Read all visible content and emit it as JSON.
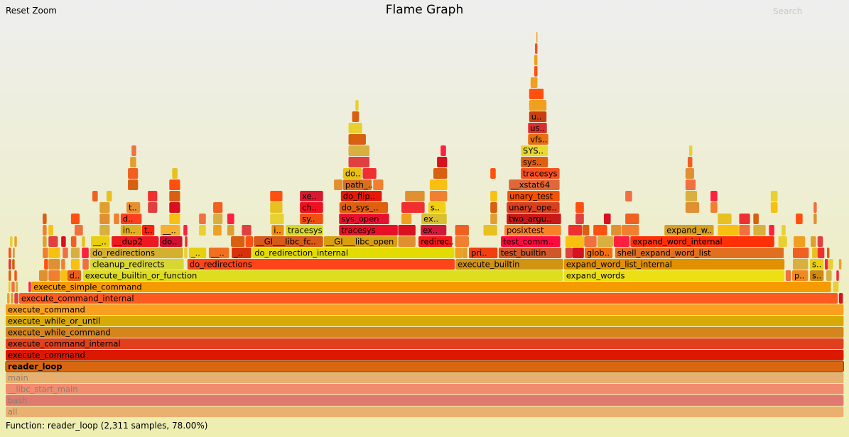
{
  "header": {
    "reset_zoom": "Reset Zoom",
    "title": "Flame Graph",
    "search": "Search"
  },
  "details": "Function: reader_loop (2,311 samples, 78.00%)",
  "chart_data": {
    "type": "flamegraph",
    "title": "Flame Graph",
    "zoomed_frame": "reader_loop",
    "total_samples_in_view": 2311,
    "frames": [
      {
        "name": "all",
        "depth": 0,
        "start": 0,
        "samples": 2311,
        "color": "#ebb070",
        "dimmed": true
      },
      {
        "name": "bash",
        "depth": 1,
        "start": 0,
        "samples": 2311,
        "color": "#e07a70",
        "dimmed": true
      },
      {
        "name": "__libc_start_main",
        "depth": 2,
        "start": 0,
        "samples": 2311,
        "color": "#f08c70",
        "dimmed": true
      },
      {
        "name": "main",
        "depth": 3,
        "start": 0,
        "samples": 2311,
        "color": "#e8b070",
        "dimmed": true
      },
      {
        "name": "reader_loop",
        "depth": 4,
        "start": 0,
        "samples": 2311,
        "color": "#d9670f",
        "selected": true
      },
      {
        "name": "execute_command",
        "depth": 5,
        "start": 0,
        "samples": 2311,
        "color": "#dd1800"
      },
      {
        "name": "execute_command_internal",
        "depth": 6,
        "start": 0,
        "samples": 2311,
        "color": "#e0401e"
      },
      {
        "name": "execute_while_command",
        "depth": 7,
        "start": 0,
        "samples": 2311,
        "color": "#d4861c"
      },
      {
        "name": "execute_while_or_until",
        "depth": 8,
        "start": 0,
        "samples": 2311,
        "color": "#d8aa08"
      },
      {
        "name": "execute_command",
        "depth": 9,
        "start": 0,
        "samples": 2311,
        "color": "#f9a020"
      },
      {
        "name": "execute_command_internal",
        "depth": 10,
        "start": 37,
        "samples": 2258,
        "color": "#fe5a20"
      },
      {
        "name": "execute_simple_command",
        "depth": 11,
        "start": 71,
        "samples": 2205,
        "color": "#f59a00"
      },
      {
        "name": "d..",
        "depth": 12,
        "start": 170,
        "samples": 39,
        "color": "#e86018"
      },
      {
        "name": "execute_builtin_or_function",
        "depth": 12,
        "start": 213,
        "samples": 1324,
        "color": "#dedd20"
      },
      {
        "name": "expand_words",
        "depth": 12,
        "start": 1539,
        "samples": 609,
        "color": "#ece014"
      },
      {
        "name": "p..",
        "depth": 12,
        "start": 2168,
        "samples": 45,
        "color": "#f08a20"
      },
      {
        "name": "s..",
        "depth": 12,
        "start": 2217,
        "samples": 39,
        "color": "#d08a10"
      },
      {
        "name": "cleanup_redirects",
        "depth": 13,
        "start": 233,
        "samples": 259,
        "color": "#d8d632"
      },
      {
        "name": "do_redirections",
        "depth": 13,
        "start": 501,
        "samples": 738,
        "color": "#ff4418"
      },
      {
        "name": "execute_builtin",
        "depth": 13,
        "start": 1240,
        "samples": 298,
        "color": "#d09412"
      },
      {
        "name": "expand_word_list_internal",
        "depth": 13,
        "start": 1539,
        "samples": 609,
        "color": "#e09000"
      },
      {
        "name": "s..",
        "depth": 13,
        "start": 2217,
        "samples": 39,
        "color": "#e8d010"
      },
      {
        "name": "do_redirections",
        "depth": 14,
        "start": 233,
        "samples": 257,
        "color": "#d4b030"
      },
      {
        "name": "_..",
        "depth": 14,
        "start": 505,
        "samples": 49,
        "color": "#e8d010"
      },
      {
        "name": "__..",
        "depth": 14,
        "start": 560,
        "samples": 57,
        "color": "#f07020"
      },
      {
        "name": "_..",
        "depth": 14,
        "start": 623,
        "samples": 55,
        "color": "#d83008"
      },
      {
        "name": "do_redirection_internal",
        "depth": 14,
        "start": 680,
        "samples": 558,
        "color": "#e4dc00"
      },
      {
        "name": "pri..",
        "depth": 14,
        "start": 1277,
        "samples": 80,
        "color": "#f04010"
      },
      {
        "name": "test_builtin",
        "depth": 14,
        "start": 1359,
        "samples": 174,
        "color": "#d05828"
      },
      {
        "name": "glob..",
        "depth": 14,
        "start": 1596,
        "samples": 78,
        "color": "#f07010"
      },
      {
        "name": "shell_expand_word_list",
        "depth": 14,
        "start": 1680,
        "samples": 466,
        "color": "#e07020"
      },
      {
        "name": "__..",
        "depth": 15,
        "start": 235,
        "samples": 53,
        "color": "#e8d010"
      },
      {
        "name": "__dup2",
        "depth": 15,
        "start": 292,
        "samples": 131,
        "color": "#ee1820"
      },
      {
        "name": "do..",
        "depth": 15,
        "start": 425,
        "samples": 63,
        "color": "#d01030"
      },
      {
        "name": "__GI___libc_fc..",
        "depth": 15,
        "start": 684,
        "samples": 192,
        "color": "#d85a18"
      },
      {
        "name": "__GI___libc_open",
        "depth": 15,
        "start": 877,
        "samples": 204,
        "color": "#d8a010"
      },
      {
        "name": "redirec..",
        "depth": 15,
        "start": 1138,
        "samples": 94,
        "color": "#f41818"
      },
      {
        "name": "test_comm..",
        "depth": 15,
        "start": 1365,
        "samples": 165,
        "color": "#ff0a40"
      },
      {
        "name": "expand_word_internal",
        "depth": 15,
        "start": 1722,
        "samples": 398,
        "color": "#ff3008"
      },
      {
        "name": "in..",
        "depth": 16,
        "start": 317,
        "samples": 59,
        "color": "#e0b020"
      },
      {
        "name": "t..",
        "depth": 16,
        "start": 376,
        "samples": 35,
        "color": "#ff2010"
      },
      {
        "name": "__..",
        "depth": 16,
        "start": 427,
        "samples": 55,
        "color": "#f5b030"
      },
      {
        "name": "i..",
        "depth": 16,
        "start": 733,
        "samples": 35,
        "color": "#f09010"
      },
      {
        "name": "tracesys",
        "depth": 16,
        "start": 772,
        "samples": 104,
        "color": "#d8d828"
      },
      {
        "name": "tracesys",
        "depth": 16,
        "start": 919,
        "samples": 163,
        "color": "#e81028"
      },
      {
        "name": "ex..",
        "depth": 16,
        "start": 1144,
        "samples": 72,
        "color": "#d01838"
      },
      {
        "name": "posixtest",
        "depth": 16,
        "start": 1375,
        "samples": 157,
        "color": "#fa8028"
      },
      {
        "name": "expand_w..",
        "depth": 16,
        "start": 1816,
        "samples": 137,
        "color": "#d8a020"
      },
      {
        "name": "d..",
        "depth": 17,
        "start": 317,
        "samples": 59,
        "color": "#ff4020"
      },
      {
        "name": "sy..",
        "depth": 17,
        "start": 811,
        "samples": 65,
        "color": "#f05010"
      },
      {
        "name": "sys_open",
        "depth": 17,
        "start": 919,
        "samples": 139,
        "color": "#e81030"
      },
      {
        "name": "ex..",
        "depth": 17,
        "start": 1146,
        "samples": 71,
        "color": "#d8c030"
      },
      {
        "name": "two_argu..",
        "depth": 17,
        "start": 1381,
        "samples": 151,
        "color": "#c81818"
      },
      {
        "name": "t..",
        "depth": 18,
        "start": 333,
        "samples": 39,
        "color": "#e89030"
      },
      {
        "name": "ch..",
        "depth": 18,
        "start": 811,
        "samples": 65,
        "color": "#f01020"
      },
      {
        "name": "do_sys_..",
        "depth": 18,
        "start": 920,
        "samples": 135,
        "color": "#e06010"
      },
      {
        "name": "s..",
        "depth": 18,
        "start": 1165,
        "samples": 49,
        "color": "#f0d010"
      },
      {
        "name": "unary_ope..",
        "depth": 18,
        "start": 1381,
        "samples": 147,
        "color": "#d84020"
      },
      {
        "name": "xe..",
        "depth": 19,
        "start": 811,
        "samples": 65,
        "color": "#d81830"
      },
      {
        "name": "do_filp..",
        "depth": 19,
        "start": 924,
        "samples": 114,
        "color": "#e81808"
      },
      {
        "name": "unary_test",
        "depth": 19,
        "start": 1383,
        "samples": 145,
        "color": "#f85000"
      },
      {
        "name": "path_..",
        "depth": 20,
        "start": 930,
        "samples": 80,
        "color": "#d87020"
      },
      {
        "name": "__xstat64",
        "depth": 20,
        "start": 1387,
        "samples": 141,
        "color": "#e06838"
      },
      {
        "name": "do..",
        "depth": 21,
        "start": 930,
        "samples": 53,
        "color": "#e8c010"
      },
      {
        "name": "tracesys",
        "depth": 21,
        "start": 1420,
        "samples": 108,
        "color": "#f85020"
      },
      {
        "name": "sys..",
        "depth": 22,
        "start": 1420,
        "samples": 76,
        "color": "#e06010"
      },
      {
        "name": "SYS..",
        "depth": 23,
        "start": 1420,
        "samples": 76,
        "color": "#e8d830"
      },
      {
        "name": "vfs..",
        "depth": 24,
        "start": 1440,
        "samples": 57,
        "color": "#e87010"
      },
      {
        "name": "us..",
        "depth": 25,
        "start": 1440,
        "samples": 53,
        "color": "#d83030"
      },
      {
        "name": "u..",
        "depth": 26,
        "start": 1443,
        "samples": 49,
        "color": "#c84010"
      }
    ],
    "palette": [
      "#f08030",
      "#e0a030",
      "#ff5010",
      "#e8d030",
      "#f03030",
      "#d8b040",
      "#f06020",
      "#f8c010",
      "#e04040",
      "#e09030",
      "#f0a020",
      "#d86010",
      "#ff2040",
      "#e8c020",
      "#f07040",
      "#d81020"
    ],
    "small_frames": [
      [
        10,
        4,
        8
      ],
      [
        10,
        14,
        8
      ],
      [
        10,
        24,
        12
      ],
      [
        10,
        2297,
        12
      ],
      [
        11,
        8,
        6
      ],
      [
        11,
        16,
        10
      ],
      [
        11,
        27,
        8
      ],
      [
        11,
        63,
        8
      ],
      [
        11,
        2281,
        16
      ],
      [
        12,
        8,
        8
      ],
      [
        12,
        24,
        8
      ],
      [
        12,
        92,
        25
      ],
      [
        12,
        118,
        33
      ],
      [
        12,
        151,
        20
      ],
      [
        12,
        2150,
        16
      ],
      [
        12,
        2262,
        16
      ],
      [
        12,
        2290,
        8
      ],
      [
        13,
        8,
        8
      ],
      [
        13,
        18,
        8
      ],
      [
        13,
        106,
        12
      ],
      [
        13,
        118,
        33
      ],
      [
        13,
        153,
        12
      ],
      [
        13,
        180,
        25
      ],
      [
        13,
        212,
        18
      ],
      [
        13,
        2170,
        43
      ],
      [
        13,
        2258,
        10
      ],
      [
        13,
        2268,
        14
      ],
      [
        13,
        2297,
        8
      ],
      [
        14,
        8,
        8
      ],
      [
        14,
        20,
        6
      ],
      [
        14,
        102,
        16
      ],
      [
        14,
        118,
        33
      ],
      [
        14,
        157,
        16
      ],
      [
        14,
        180,
        25
      ],
      [
        14,
        210,
        20
      ],
      [
        14,
        492,
        10
      ],
      [
        14,
        1239,
        20
      ],
      [
        14,
        1258,
        16
      ],
      [
        14,
        1543,
        20
      ],
      [
        14,
        1562,
        33
      ],
      [
        14,
        2170,
        45
      ],
      [
        14,
        2223,
        16
      ],
      [
        14,
        2238,
        20
      ],
      [
        14,
        2264,
        8
      ],
      [
        15,
        12,
        8
      ],
      [
        15,
        24,
        8
      ],
      [
        15,
        102,
        12
      ],
      [
        15,
        118,
        27
      ],
      [
        15,
        153,
        14
      ],
      [
        15,
        180,
        16
      ],
      [
        15,
        210,
        10
      ],
      [
        15,
        494,
        8
      ],
      [
        15,
        621,
        39
      ],
      [
        15,
        661,
        22
      ],
      [
        15,
        1082,
        49
      ],
      [
        15,
        1239,
        39
      ],
      [
        15,
        1543,
        53
      ],
      [
        15,
        1595,
        35
      ],
      [
        15,
        1631,
        45
      ],
      [
        15,
        1676,
        45
      ],
      [
        15,
        2130,
        25
      ],
      [
        15,
        2172,
        33
      ],
      [
        15,
        2219,
        16
      ],
      [
        15,
        2238,
        16
      ],
      [
        16,
        102,
        12
      ],
      [
        16,
        118,
        14
      ],
      [
        16,
        190,
        24
      ],
      [
        16,
        259,
        29
      ],
      [
        16,
        490,
        12
      ],
      [
        16,
        533,
        20
      ],
      [
        16,
        572,
        24
      ],
      [
        16,
        611,
        20
      ],
      [
        16,
        651,
        27
      ],
      [
        16,
        1082,
        49
      ],
      [
        16,
        1239,
        39
      ],
      [
        16,
        1317,
        39
      ],
      [
        16,
        1551,
        39
      ],
      [
        16,
        1590,
        20
      ],
      [
        16,
        1620,
        39
      ],
      [
        16,
        1669,
        29
      ],
      [
        16,
        1698,
        49
      ],
      [
        16,
        1963,
        59
      ],
      [
        16,
        2022,
        31
      ],
      [
        16,
        2061,
        35
      ],
      [
        16,
        2104,
        16
      ],
      [
        16,
        2139,
        12
      ],
      [
        17,
        102,
        12
      ],
      [
        17,
        180,
        25
      ],
      [
        17,
        259,
        29
      ],
      [
        17,
        298,
        16
      ],
      [
        17,
        451,
        31
      ],
      [
        17,
        533,
        20
      ],
      [
        17,
        572,
        27
      ],
      [
        17,
        611,
        20
      ],
      [
        17,
        729,
        39
      ],
      [
        17,
        1091,
        29
      ],
      [
        17,
        1336,
        20
      ],
      [
        17,
        1571,
        24
      ],
      [
        17,
        1649,
        20
      ],
      [
        17,
        1708,
        39
      ],
      [
        17,
        1963,
        39
      ],
      [
        17,
        2022,
        31
      ],
      [
        17,
        2061,
        16
      ],
      [
        17,
        2178,
        20
      ],
      [
        17,
        2227,
        10
      ],
      [
        18,
        259,
        29
      ],
      [
        18,
        392,
        27
      ],
      [
        18,
        451,
        31
      ],
      [
        18,
        572,
        27
      ],
      [
        18,
        729,
        35
      ],
      [
        18,
        1091,
        65
      ],
      [
        18,
        1336,
        20
      ],
      [
        18,
        1571,
        24
      ],
      [
        18,
        1874,
        39
      ],
      [
        18,
        1943,
        20
      ],
      [
        18,
        2109,
        20
      ],
      [
        18,
        2227,
        10
      ],
      [
        19,
        239,
        16
      ],
      [
        19,
        278,
        16
      ],
      [
        19,
        392,
        27
      ],
      [
        19,
        451,
        31
      ],
      [
        19,
        729,
        35
      ],
      [
        19,
        1101,
        55
      ],
      [
        19,
        1169,
        49
      ],
      [
        19,
        1336,
        20
      ],
      [
        19,
        1708,
        20
      ],
      [
        19,
        1874,
        33
      ],
      [
        19,
        1943,
        20
      ],
      [
        19,
        2109,
        20
      ],
      [
        20,
        337,
        29
      ],
      [
        20,
        451,
        31
      ],
      [
        20,
        905,
        25
      ],
      [
        20,
        1013,
        29
      ],
      [
        20,
        1169,
        49
      ],
      [
        20,
        1874,
        29
      ],
      [
        21,
        337,
        29
      ],
      [
        21,
        459,
        16
      ],
      [
        21,
        984,
        39
      ],
      [
        21,
        1179,
        39
      ],
      [
        21,
        1336,
        16
      ],
      [
        21,
        1874,
        25
      ],
      [
        22,
        343,
        18
      ],
      [
        22,
        945,
        59
      ],
      [
        22,
        1189,
        29
      ],
      [
        22,
        1880,
        14
      ],
      [
        23,
        347,
        14
      ],
      [
        23,
        945,
        59
      ],
      [
        23,
        1199,
        16
      ],
      [
        23,
        1884,
        10
      ],
      [
        24,
        945,
        49
      ],
      [
        25,
        945,
        39
      ],
      [
        26,
        955,
        20
      ],
      [
        27,
        964,
        10
      ],
      [
        27,
        1443,
        49
      ],
      [
        28,
        1443,
        41
      ],
      [
        29,
        1447,
        20
      ],
      [
        30,
        1457,
        10
      ],
      [
        31,
        1457,
        10
      ],
      [
        32,
        1459,
        8
      ],
      [
        33,
        1463,
        4
      ]
    ]
  }
}
